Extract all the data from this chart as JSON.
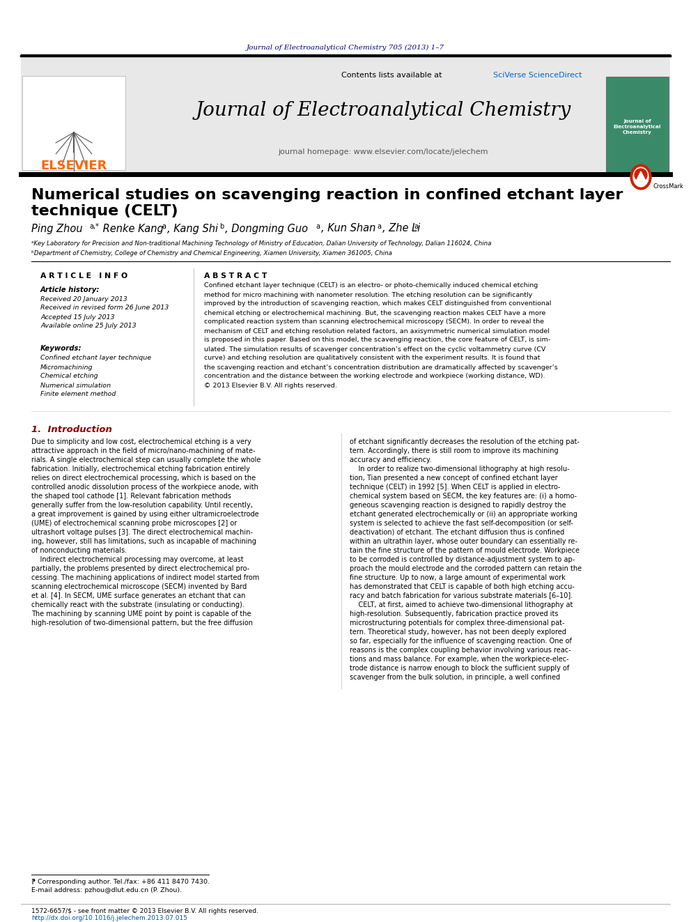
{
  "bg_color": "#ffffff",
  "top_journal_text": "Journal of Electroanalytical Chemistry 705 (2013) 1–7",
  "top_journal_color": "#000080",
  "journal_name": "Journal of Electroanalytical Chemistry",
  "journal_homepage": "journal homepage: www.elsevier.com/locate/jelechem",
  "contents_text": "Contents lists available at ",
  "sciverse_text": "SciVerse ScienceDirect",
  "elsevier_color": "#FF6600",
  "header_bg": "#e8e8e8",
  "title_line1": "Numerical studies on scavenging reaction in confined etchant layer",
  "title_line2": "technique (CELT)",
  "affil_a": "ᵃKey Laboratory for Precision and Non-traditional Machining Technology of Ministry of Education, Dalian University of Technology, Dalian 116024, China",
  "affil_b": "ᵇDepartment of Chemistry, College of Chemistry and Chemical Engineering, Xiamen University, Xiamen 361005, China",
  "article_info_title": "A R T I C L E   I N F O",
  "abstract_title": "A B S T R A C T",
  "article_history_title": "Article history:",
  "received": "Received 20 January 2013",
  "revised": "Received in revised form 26 June 2013",
  "accepted": "Accepted 15 July 2013",
  "available": "Available online 25 July 2013",
  "keywords_title": "Keywords:",
  "kw1": "Confined etchant layer technique",
  "kw2": "Micromachining",
  "kw3": "Chemical etching",
  "kw4": "Numerical simulation",
  "kw5": "Finite element method",
  "intro_title": "1.  Introduction",
  "footnote_star": "⁋ Corresponding author. Tel./fax: +86 411 8470 7430.",
  "footnote_email": "E-mail address: pzhou@dlut.edu.cn (P. Zhou).",
  "issn": "1572-6657/$ - see front matter © 2013 Elsevier B.V. All rights reserved.",
  "doi": "http://dx.doi.org/10.1016/j.jelechem.2013.07.015"
}
